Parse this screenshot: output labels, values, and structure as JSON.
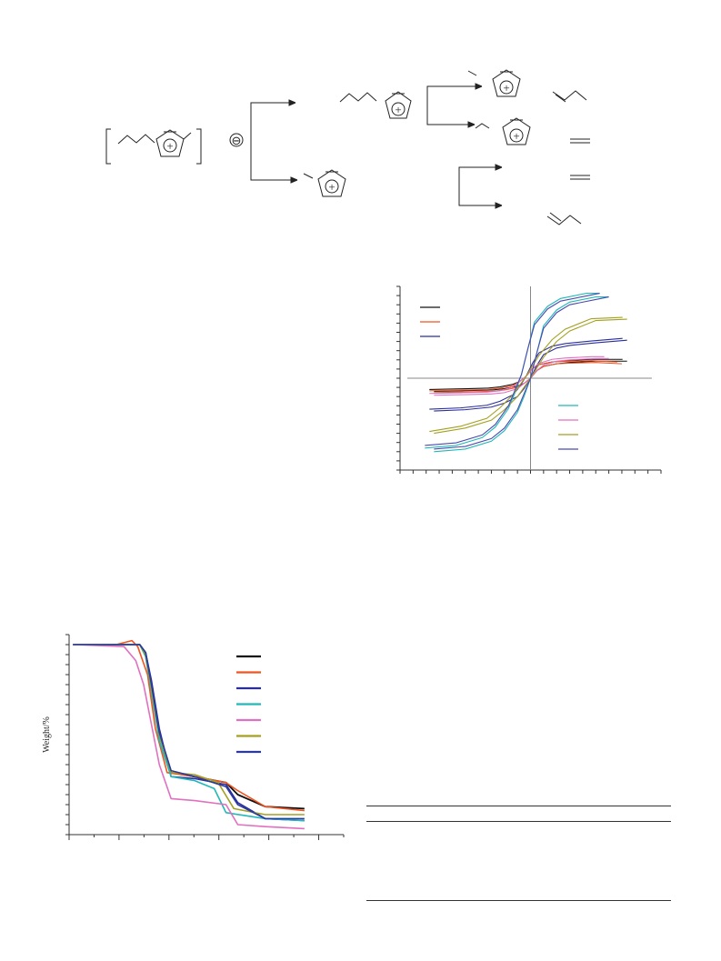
{
  "scheme": {
    "anion_symbol": "⊖",
    "cation_symbol": "+"
  },
  "figures": {
    "tga": {
      "ylabel": "Weight/%"
    }
  },
  "chart_data": [
    {
      "type": "line",
      "title": "",
      "xlabel": "",
      "ylabel": "",
      "grid": false,
      "legend_position": "split: top-left (3 entries), bottom-right (4 entries)",
      "x_range": [
        -10,
        10
      ],
      "y_range": [
        -70,
        70
      ],
      "series_colors": [
        "#111111",
        "#ee5522",
        "#2a2e9a",
        "#22b8b8",
        "#e070c0",
        "#a4a020",
        "#4a4ab0"
      ],
      "series": [
        {
          "x": [
            -7.4,
            -5,
            -3,
            -2,
            -1,
            -0.5,
            0,
            0.5,
            1,
            2,
            3,
            5,
            7.4
          ],
          "values": [
            -10,
            -9.5,
            -9,
            -8,
            -6,
            -4,
            0,
            6,
            9,
            11,
            12,
            13,
            13
          ]
        },
        {
          "x": [
            -7.4,
            -5,
            -3,
            -2,
            -1,
            -0.5,
            0,
            0.5,
            1,
            2,
            3,
            5,
            7.0
          ],
          "values": [
            -11,
            -10.5,
            -10,
            -9,
            -7,
            -4,
            0,
            6,
            9,
            11,
            11.5,
            12,
            11
          ]
        },
        {
          "x": [
            -7.4,
            -5,
            -3,
            -2,
            -1,
            -0.5,
            0,
            0.5,
            1,
            2,
            3,
            5,
            7.4
          ],
          "values": [
            -25,
            -24,
            -22,
            -19,
            -14,
            -8,
            0,
            10,
            18,
            23,
            25,
            27,
            29
          ]
        },
        {
          "x": [
            -7.4,
            -5,
            -3,
            -2,
            -1,
            -0.5,
            0,
            0.5,
            1,
            2,
            3,
            5,
            6.0
          ],
          "values": [
            -56,
            -54,
            -48,
            -40,
            -26,
            -14,
            0,
            20,
            40,
            52,
            58,
            62,
            62
          ]
        },
        {
          "x": [
            -7.4,
            -5,
            -3,
            -2,
            -1,
            -0.5,
            0,
            0.5,
            1,
            2,
            3,
            5,
            6.0
          ],
          "values": [
            -13,
            -12.5,
            -12,
            -11,
            -8,
            -4,
            0,
            6,
            10,
            13,
            14,
            15,
            15
          ]
        },
        {
          "x": [
            -7.4,
            -5,
            -3,
            -2,
            -1,
            -0.5,
            0,
            0.5,
            1,
            2,
            3,
            5,
            7.4
          ],
          "values": [
            -42,
            -38,
            -32,
            -24,
            -14,
            -7,
            0,
            8,
            16,
            28,
            36,
            44,
            45
          ]
        },
        {
          "x": [
            -7.4,
            -5,
            -3,
            -2,
            -1,
            -0.5,
            0,
            0.5,
            1,
            2,
            3,
            5,
            6.0
          ],
          "values": [
            -54,
            -52,
            -46,
            -38,
            -24,
            -12,
            0,
            20,
            38,
            50,
            56,
            60,
            62
          ]
        }
      ]
    },
    {
      "type": "line",
      "title": "",
      "xlabel": "",
      "ylabel": "Weight/%",
      "grid": false,
      "legend_position": "top-right",
      "x_range": [
        0,
        7
      ],
      "y_range": [
        0,
        100
      ],
      "series_colors": [
        "#111111",
        "#ee5522",
        "#2a2e9a",
        "#22b8b8",
        "#e070c0",
        "#a4a020",
        "#2a3aa0"
      ],
      "series": [
        {
          "x": [
            0.1,
            1.8,
            1.95,
            2.1,
            2.3,
            2.6,
            3.2,
            4.0,
            4.3,
            5.0,
            6.0
          ],
          "values": [
            100,
            100,
            96,
            80,
            55,
            36,
            34,
            31,
            25,
            19,
            18
          ]
        },
        {
          "x": [
            0.1,
            1.2,
            1.6,
            1.75,
            2.0,
            2.2,
            2.5,
            3.2,
            4.0,
            4.3,
            5.0,
            6.0
          ],
          "values": [
            100,
            100,
            102,
            99,
            85,
            58,
            36,
            34,
            31,
            27,
            19,
            17
          ]
        },
        {
          "x": [
            0.1,
            1.8,
            1.95,
            2.1,
            2.3,
            2.6,
            3.2,
            4.0,
            4.3,
            5.0,
            6.0
          ],
          "values": [
            100,
            100,
            96,
            82,
            58,
            34,
            33,
            30,
            21,
            13,
            12
          ]
        },
        {
          "x": [
            0.1,
            1.8,
            1.95,
            2.1,
            2.3,
            2.6,
            3.2,
            3.7,
            4.0,
            5.0,
            6.0
          ],
          "values": [
            100,
            100,
            94,
            76,
            52,
            34,
            32,
            28,
            16,
            13,
            12
          ]
        },
        {
          "x": [
            0.1,
            1.4,
            1.7,
            1.9,
            2.1,
            2.3,
            2.6,
            3.2,
            4.0,
            4.3,
            5.0,
            6.0
          ],
          "values": [
            100,
            99,
            92,
            80,
            60,
            40,
            23,
            22,
            20,
            10,
            9,
            8
          ]
        },
        {
          "x": [
            0.1,
            1.8,
            1.95,
            2.1,
            2.3,
            2.6,
            3.2,
            3.8,
            4.2,
            5.0,
            6.0
          ],
          "values": [
            100,
            100,
            95,
            78,
            55,
            36,
            35,
            31,
            18,
            15,
            15
          ]
        },
        {
          "x": [
            0.1,
            1.8,
            1.95,
            2.1,
            2.3,
            2.6,
            3.2,
            4.0,
            4.3,
            5.0,
            6.0
          ],
          "values": [
            100,
            100,
            96,
            80,
            56,
            37,
            34,
            29,
            20,
            13,
            13
          ]
        }
      ]
    }
  ]
}
